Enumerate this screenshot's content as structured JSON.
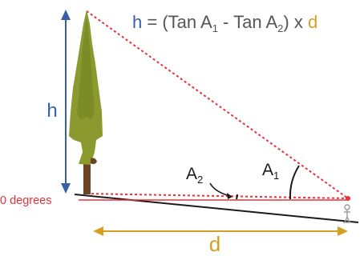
{
  "formula": {
    "h": "h",
    "eq": " = (Tan A",
    "sub1": "1",
    "minus": " - Tan A",
    "sub2": "2",
    "close": ") x ",
    "d": "d"
  },
  "labels": {
    "h": "h",
    "d": "d",
    "zero_degrees": "0 degrees",
    "a1": "A",
    "a1_sub": "1",
    "a2": "A",
    "a2_sub": "2"
  },
  "colors": {
    "blue": "#3b5fa6",
    "red": "#e8323a",
    "gold": "#d4a020",
    "ground": "#1a1a1a",
    "tree_green": "#8a9a2e",
    "trunk": "#6b4424"
  },
  "icons": {
    "tree": "conifer-tree-icon",
    "observer": "person-icon"
  }
}
